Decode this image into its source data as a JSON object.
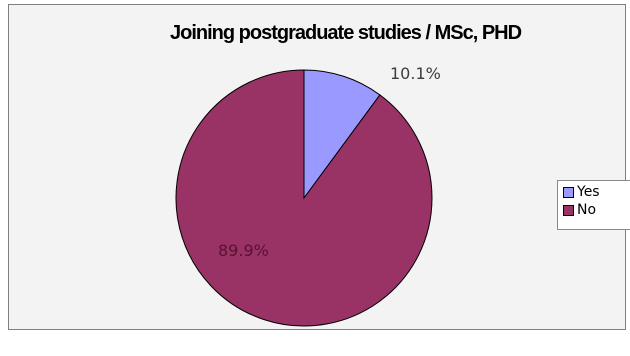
{
  "chart_data": {
    "type": "pie",
    "title": "Joining postgraduate studies / MSc, PHD",
    "categories": [
      "Yes",
      "No"
    ],
    "values": [
      10.1,
      89.9
    ],
    "data_labels": [
      "10.1%",
      "89.9%"
    ],
    "colors": [
      "#9999ff",
      "#993366"
    ],
    "legend_position": "right",
    "legend": [
      {
        "label": "Yes",
        "color": "#9999ff"
      },
      {
        "label": "No",
        "color": "#993366"
      }
    ]
  }
}
